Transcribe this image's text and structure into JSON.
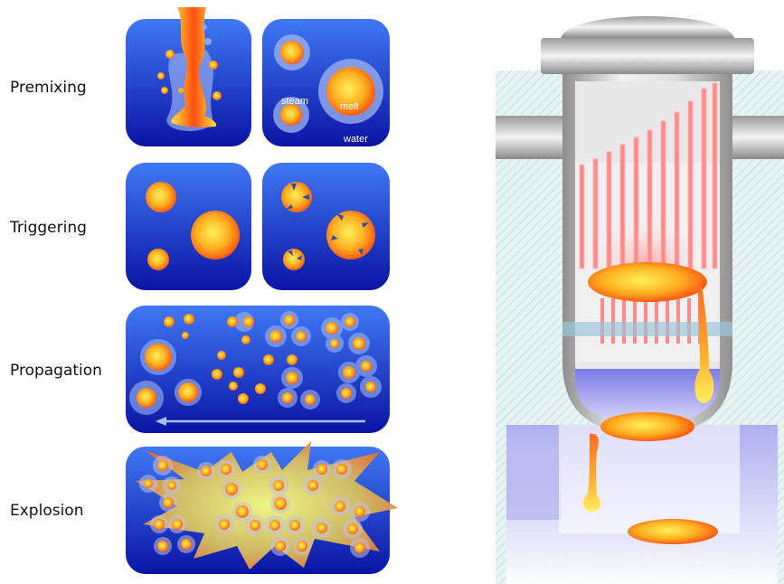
{
  "stages": [
    {
      "label": "Premixing"
    },
    {
      "label": "Triggering"
    },
    {
      "label": "Propagation"
    },
    {
      "label": "Explosion"
    }
  ],
  "premix_labels": {
    "steam": "steam",
    "melt": "melt",
    "water": "water"
  },
  "colors": {
    "panel_top": "#3a6cf0",
    "panel_bottom": "#0a16a8",
    "melt_core": "#ffe24a",
    "melt_edge": "#ff5a10",
    "steam": "#9fb6f0",
    "vessel_metal": "#c8c8c8",
    "hatch_bg": "#dff2f2",
    "water_pool": "#8c8cf0",
    "heater_red": "#ff7070"
  },
  "icons": [
    "premixing-panel",
    "triggering-panel",
    "propagation-panel",
    "explosion-panel",
    "reactor-vessel"
  ]
}
